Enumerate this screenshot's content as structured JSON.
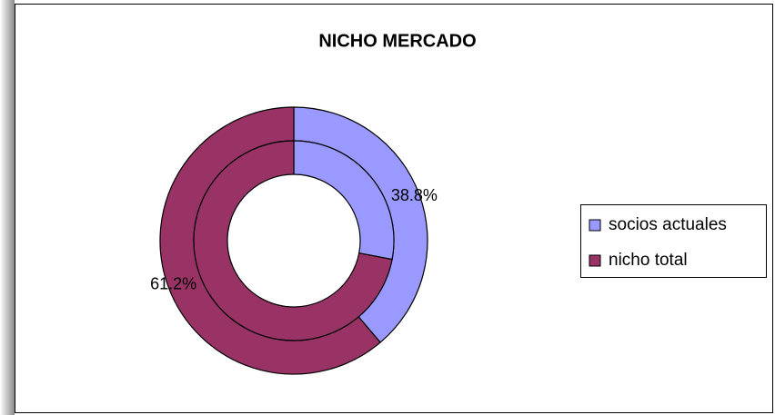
{
  "chart_data": {
    "type": "doughnut",
    "title": "NICHO MERCADO",
    "categories": [
      "socios actuales",
      "nicho total"
    ],
    "colors": [
      "#9999ff",
      "#993366"
    ],
    "series": [
      {
        "values": [
          38.8,
          61.2
        ],
        "value_labels": [
          "38.8%",
          "61.2%"
        ]
      },
      {
        "values": [
          28,
          72
        ]
      }
    ],
    "legend": "right"
  }
}
